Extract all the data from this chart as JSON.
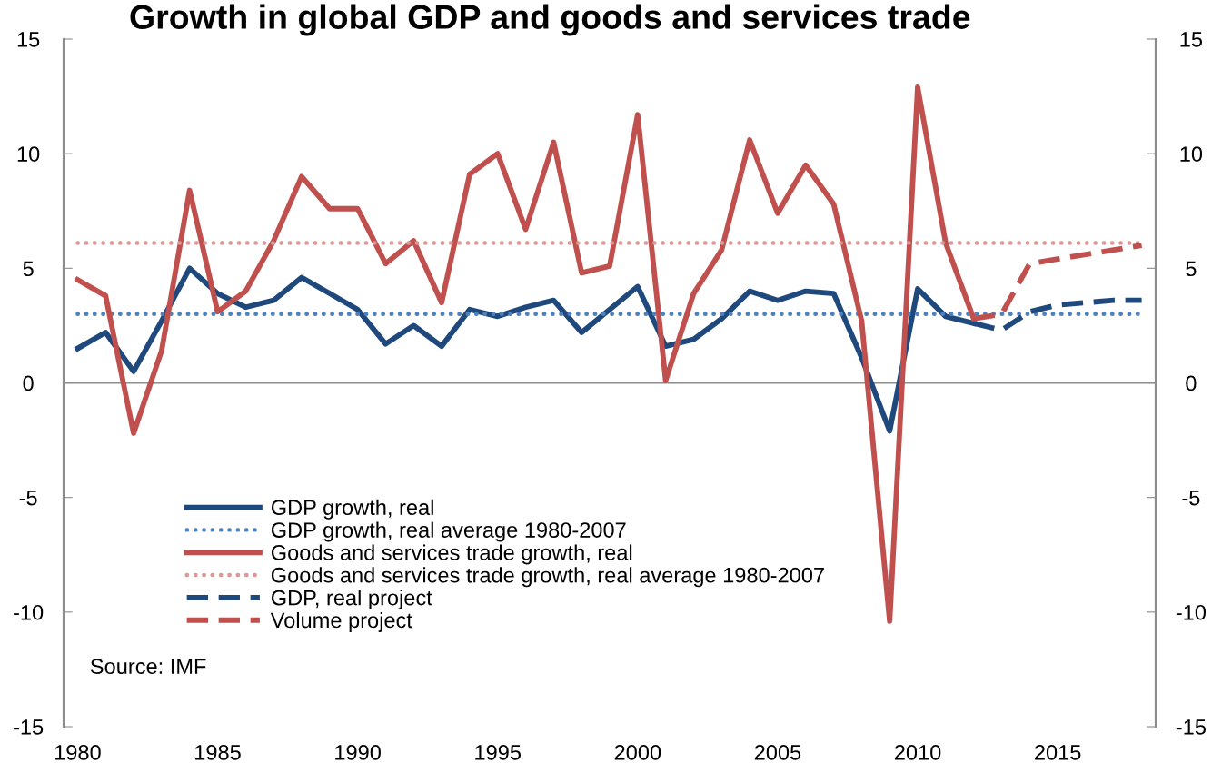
{
  "chart_data": {
    "type": "line",
    "title": "Growth in global GDP and goods and services trade",
    "xlim": [
      1979.5,
      2018.5
    ],
    "xticks": [
      1980,
      1985,
      1990,
      1995,
      2000,
      2005,
      2010,
      2015
    ],
    "ylim": [
      -15,
      15
    ],
    "yticks": [
      -15,
      -10,
      -5,
      0,
      5,
      10,
      15
    ],
    "y2lim": [
      -15,
      15
    ],
    "y2ticks": [
      -15,
      -10,
      -5,
      0,
      5,
      10,
      15
    ],
    "grid": false,
    "legend": "bottom left",
    "marker": "none",
    "ref_lines": [
      {
        "axis": "y",
        "value": 0,
        "label": null,
        "color": "#8c8c8c",
        "line_style": "solid"
      }
    ],
    "annotations": [
      "Source: IMF"
    ],
    "series": [
      {
        "name": "GDP growth, real",
        "color": "#1f497d",
        "line_style": "solid",
        "x": [
          1980,
          1981,
          1982,
          1983,
          1984,
          1985,
          1986,
          1987,
          1988,
          1989,
          1990,
          1991,
          1992,
          1993,
          1994,
          1995,
          1996,
          1997,
          1998,
          1999,
          2000,
          2001,
          2002,
          2003,
          2004,
          2005,
          2006,
          2007,
          2008,
          2009,
          2010,
          2011,
          2012
        ],
        "values": [
          1.5,
          2.2,
          0.5,
          2.7,
          5.0,
          3.9,
          3.3,
          3.6,
          4.6,
          3.9,
          3.2,
          1.7,
          2.5,
          1.6,
          3.2,
          2.9,
          3.3,
          3.6,
          2.2,
          3.2,
          4.2,
          1.6,
          1.9,
          2.8,
          4.0,
          3.6,
          4.0,
          3.9,
          1.1,
          -2.1,
          4.1,
          2.9,
          2.6
        ]
      },
      {
        "name": "GDP growth, real average 1980-2007",
        "color": "#4f81bd",
        "line_style": "dotted",
        "x": [
          1980,
          2018
        ],
        "values": [
          3.0,
          3.0
        ]
      },
      {
        "name": "Goods and services trade growth, real",
        "color": "#c0504d",
        "line_style": "solid",
        "x": [
          1980,
          1981,
          1982,
          1983,
          1984,
          1985,
          1986,
          1987,
          1988,
          1989,
          1990,
          1991,
          1992,
          1993,
          1994,
          1995,
          1996,
          1997,
          1998,
          1999,
          2000,
          2001,
          2002,
          2003,
          2004,
          2005,
          2006,
          2007,
          2008,
          2009,
          2010,
          2011,
          2012
        ],
        "values": [
          4.5,
          3.8,
          -2.2,
          1.4,
          8.4,
          3.1,
          4.0,
          6.2,
          9.0,
          7.6,
          7.6,
          5.2,
          6.2,
          3.5,
          9.1,
          10.0,
          6.7,
          10.5,
          4.8,
          5.1,
          11.7,
          0.1,
          3.9,
          5.8,
          10.6,
          7.4,
          9.5,
          7.8,
          2.7,
          -10.4,
          12.9,
          6.1,
          2.8
        ]
      },
      {
        "name": "Goods and services trade growth, real average 1980-2007",
        "color": "#dc9896",
        "line_style": "dotted",
        "x": [
          1980,
          2018
        ],
        "values": [
          6.1,
          6.1
        ]
      },
      {
        "name": "GDP, real project",
        "color": "#1f497d",
        "line_style": "dashed",
        "x": [
          2012,
          2013,
          2014,
          2015,
          2016,
          2017,
          2018
        ],
        "values": [
          2.6,
          2.3,
          3.1,
          3.4,
          3.5,
          3.6,
          3.6
        ]
      },
      {
        "name": "Volume project",
        "color": "#c0504d",
        "line_style": "dashed",
        "x": [
          2012,
          2013,
          2014,
          2015,
          2016,
          2017,
          2018
        ],
        "values": [
          2.8,
          3.0,
          5.2,
          5.4,
          5.6,
          5.8,
          6.0
        ]
      }
    ]
  }
}
